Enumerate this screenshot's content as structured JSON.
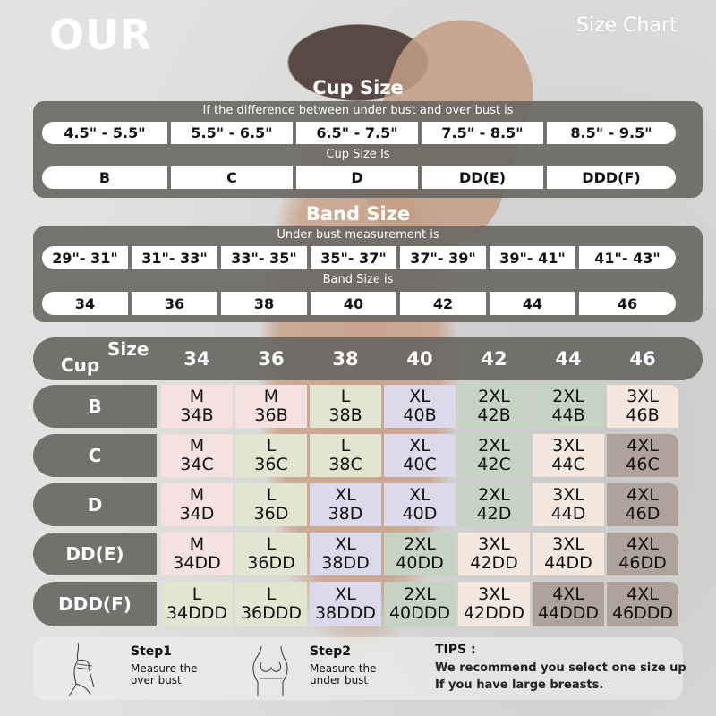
{
  "brand": "OUR",
  "header_title": "Size Chart",
  "cup_section": {
    "title": "Cup Size",
    "subtitle": "If the  difference between under bust and over bust is",
    "differences": [
      "4.5\" -  5.5\"",
      "5.5\" -  6.5\"",
      "6.5\" -  7.5\"",
      "7.5\" -  8.5\"",
      "8.5\" -  9.5\""
    ],
    "result_label": "Cup Size Is",
    "cups": [
      "B",
      "C",
      "D",
      "DD(E)",
      "DDD(F)"
    ]
  },
  "band_section": {
    "title": "Band Size",
    "subtitle": "Under bust measurement is",
    "measurements": [
      "29\"- 31\"",
      "31\"- 33\"",
      "33\"- 35\"",
      "35\"- 37\"",
      "37\"- 39\"",
      "39\"- 41\"",
      "41\"- 43\""
    ],
    "result_label": "Band Size is",
    "bands": [
      "34",
      "36",
      "38",
      "40",
      "42",
      "44",
      "46"
    ]
  },
  "grid": {
    "corner_size": "Size",
    "corner_cup": "Cup",
    "columns": [
      "34",
      "36",
      "38",
      "40",
      "42",
      "44",
      "46"
    ],
    "colors": {
      "M": "#f5e1df",
      "L": "#e2e6d0",
      "XL": "#dcd9ea",
      "2XL": "#c5d3c3",
      "3XL": "#f3e7de",
      "4XL": "#aea29a"
    },
    "rows": [
      {
        "cup": "B",
        "cells": [
          [
            "M",
            "34B"
          ],
          [
            "M",
            "36B"
          ],
          [
            "L",
            "38B"
          ],
          [
            "XL",
            "40B"
          ],
          [
            "2XL",
            "42B"
          ],
          [
            "2XL",
            "44B"
          ],
          [
            "3XL",
            "46B"
          ]
        ]
      },
      {
        "cup": "C",
        "cells": [
          [
            "M",
            "34C"
          ],
          [
            "L",
            "36C"
          ],
          [
            "L",
            "38C"
          ],
          [
            "XL",
            "40C"
          ],
          [
            "2XL",
            "42C"
          ],
          [
            "3XL",
            "44C"
          ],
          [
            "4XL",
            "46C"
          ]
        ]
      },
      {
        "cup": "D",
        "cells": [
          [
            "M",
            "34D"
          ],
          [
            "L",
            "36D"
          ],
          [
            "XL",
            "38D"
          ],
          [
            "XL",
            "40D"
          ],
          [
            "2XL",
            "42D"
          ],
          [
            "3XL",
            "44D"
          ],
          [
            "4XL",
            "46D"
          ]
        ]
      },
      {
        "cup": "DD(E)",
        "cells": [
          [
            "M",
            "34DD"
          ],
          [
            "L",
            "36DD"
          ],
          [
            "XL",
            "38DD"
          ],
          [
            "2XL",
            "40DD"
          ],
          [
            "3XL",
            "42DD"
          ],
          [
            "3XL",
            "44DD"
          ],
          [
            "4XL",
            "46DD"
          ]
        ]
      },
      {
        "cup": "DDD(F)",
        "cells": [
          [
            "L",
            "34DDD"
          ],
          [
            "L",
            "36DDD"
          ],
          [
            "XL",
            "38DDD"
          ],
          [
            "2XL",
            "40DDD"
          ],
          [
            "3XL",
            "42DDD"
          ],
          [
            "4XL",
            "44DDD"
          ],
          [
            "4XL",
            "46DDD"
          ]
        ]
      }
    ]
  },
  "steps": [
    {
      "title": "Step1",
      "desc1": "Measure the",
      "desc2": "over bust",
      "icon": "over-bust-measure-illustration"
    },
    {
      "title": "Step2",
      "desc1": "Measure the",
      "desc2": "under bust",
      "icon": "under-bust-measure-illustration"
    }
  ],
  "tips": {
    "title": "TIPS :",
    "line1": "We recommend you select one size up",
    "line2": "If you have large breasts."
  }
}
